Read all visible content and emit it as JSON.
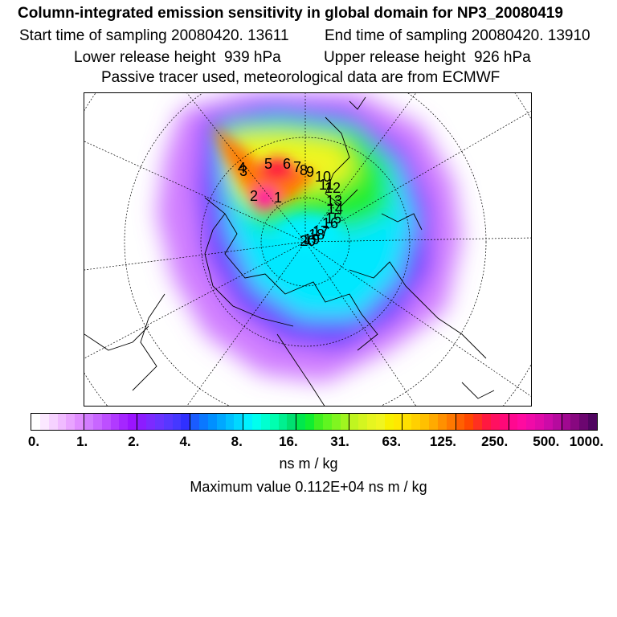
{
  "header": {
    "title": "Column-integrated emission sensitivity in global domain for NP3_20080419",
    "start_time": "Start time of sampling 20080420. 13611",
    "end_time": "End time of sampling 20080420. 13910",
    "lower_release": "Lower release height  939 hPa",
    "upper_release": "Upper release height  926 hPa",
    "tracer_note": "Passive tracer used, meteorological data are from ECMWF"
  },
  "chart_data": {
    "type": "heatmap",
    "title": "Column-integrated emission sensitivity in global domain for NP3_20080419",
    "projection": "polar-stereographic-north",
    "colorbar": {
      "tick_labels": [
        "0.",
        "1.",
        "2.",
        "4.",
        "8.",
        "16.",
        "31.",
        "63.",
        "125.",
        "250.",
        "500.",
        "1000."
      ],
      "colors": [
        "#ffffff",
        "#fbe8ff",
        "#f6d2ff",
        "#f0bbff",
        "#e9a4ff",
        "#e08cff",
        "#d27cff",
        "#c866ff",
        "#bd4fff",
        "#b13aff",
        "#a526ff",
        "#9a14ff",
        "#8c1cff",
        "#7c2aff",
        "#6a33ff",
        "#5837ff",
        "#4538ff",
        "#3030ff",
        "#1a5cff",
        "#0a78ff",
        "#0090ff",
        "#00a8ff",
        "#00c0ff",
        "#00d8ff",
        "#00f0ff",
        "#00ffee",
        "#00ffd0",
        "#00ffb0",
        "#00f090",
        "#00e070",
        "#00e84c",
        "#10ee30",
        "#40f020",
        "#60f520",
        "#80f520",
        "#a0f520",
        "#c0f520",
        "#d4f520",
        "#e6f520",
        "#f0f520",
        "#f8f000",
        "#ffe800",
        "#ffe000",
        "#ffd000",
        "#ffc000",
        "#ffaa00",
        "#ff9000",
        "#ff7800",
        "#ff6000",
        "#ff4800",
        "#ff3020",
        "#ff1840",
        "#ff1060",
        "#ff0878",
        "#ff0890",
        "#ff0aa0",
        "#f00aa8",
        "#e00aa8",
        "#cc0aa8",
        "#b60a9e",
        "#a00890",
        "#880880",
        "#6c0670",
        "#500560"
      ],
      "units": "ns m / kg"
    },
    "max_value_text": "Maximum value  0.112E+04 ns m / kg",
    "release_labels": [
      "1",
      "2",
      "3",
      "4",
      "5",
      "6",
      "7",
      "8",
      "9",
      "10",
      "11",
      "12",
      "13",
      "14",
      "15",
      "16",
      "17",
      "18",
      "19",
      "20"
    ]
  }
}
